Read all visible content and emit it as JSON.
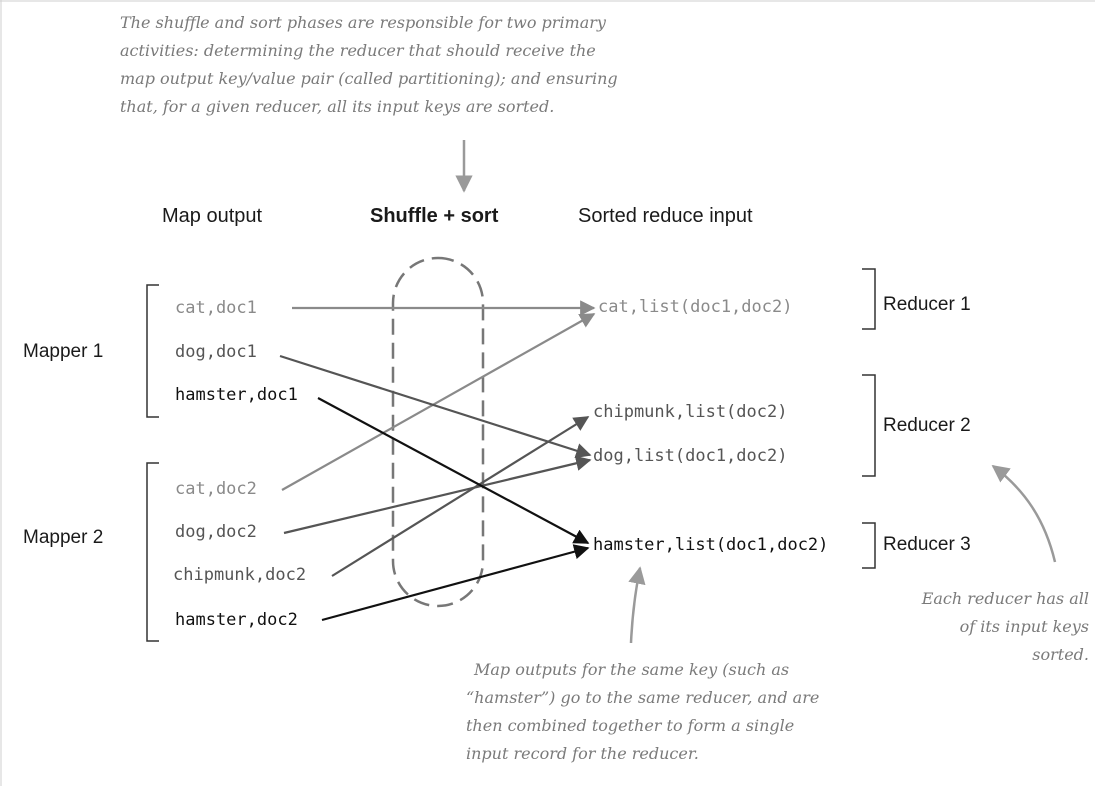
{
  "headers": {
    "map_output": "Map output",
    "shuffle_sort": "Shuffle + sort",
    "sorted_reduce_input": "Sorted reduce input"
  },
  "mappers": [
    {
      "label": "Mapper 1",
      "records": [
        "cat,doc1",
        "dog,doc1",
        "hamster,doc1"
      ]
    },
    {
      "label": "Mapper 2",
      "records": [
        "cat,doc2",
        "dog,doc2",
        "chipmunk,doc2",
        "hamster,doc2"
      ]
    }
  ],
  "reduce_inputs": [
    "cat,list(doc1,doc2)",
    "chipmunk,list(doc2)",
    "dog,list(doc1,doc2)",
    "hamster,list(doc1,doc2)"
  ],
  "reducers": [
    "Reducer 1",
    "Reducer 2",
    "Reducer 3"
  ],
  "annotations": {
    "top": [
      "The shuffle and sort phases are responsible for two primary",
      "activities: determining the reducer that should receive the",
      "map output key/value pair (called partitioning); and ensuring",
      "that, for a given reducer, all its input keys are sorted."
    ],
    "bottom": [
      "Map outputs for the same key (such as",
      "“hamster”) go to the same reducer, and are",
      "then combined together to form a single",
      "input record for the reducer."
    ],
    "right": [
      "Each reducer has all",
      "of its input keys",
      "sorted."
    ]
  },
  "colors": {
    "light": "#8a8a8a",
    "mid": "#555555",
    "dark": "#111111",
    "bracket": "#333333",
    "note": "#9a9a9a"
  }
}
